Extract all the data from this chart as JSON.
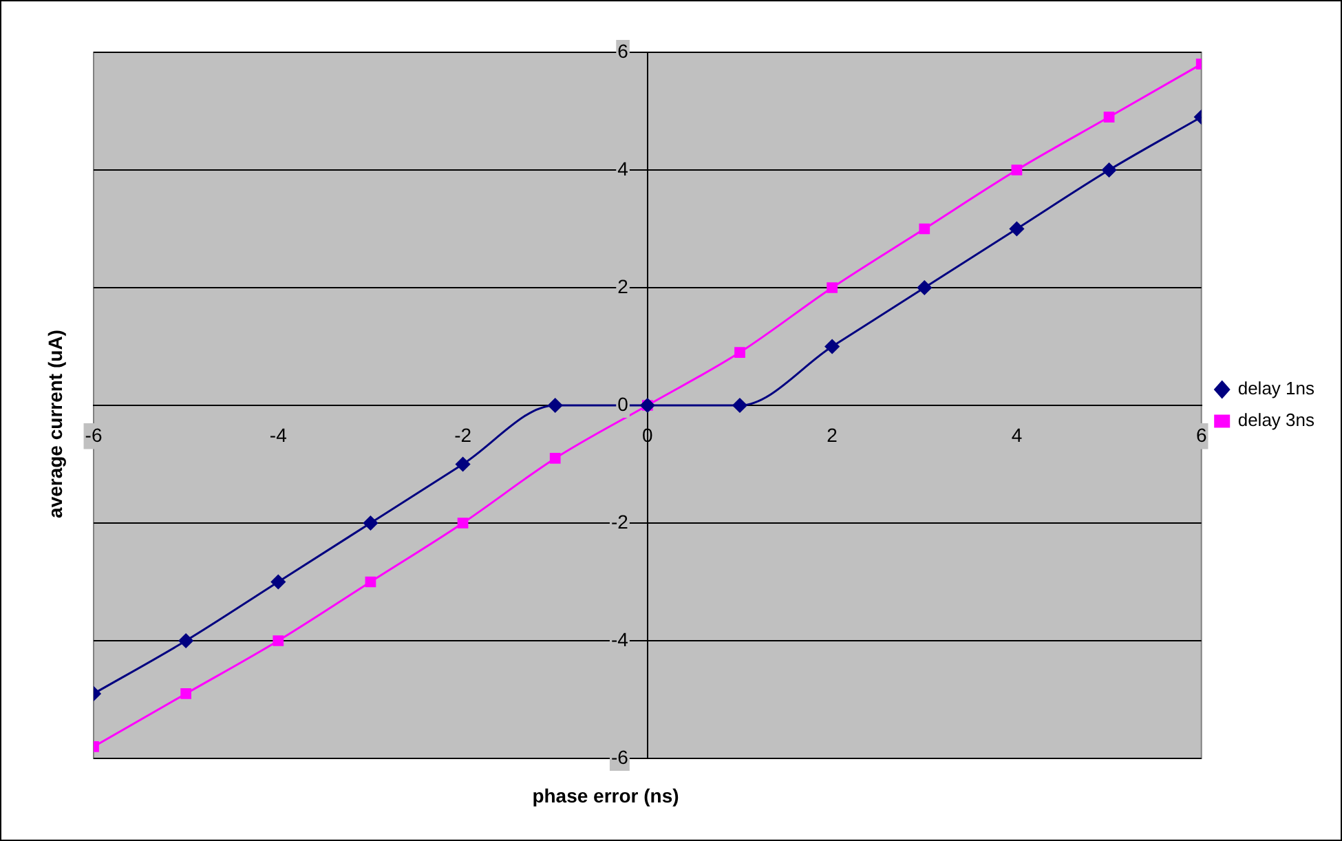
{
  "chart_data": {
    "type": "line",
    "xlabel": "phase error (ns)",
    "ylabel": "average current (uA)",
    "x": [
      -6,
      -5,
      -4,
      -3,
      -2,
      -1,
      0,
      1,
      2,
      3,
      4,
      5,
      6
    ],
    "series": [
      {
        "name": "delay 1ns",
        "color": "#000080",
        "marker": "diamond",
        "values": [
          -4.9,
          -4,
          -3,
          -2,
          -1,
          0,
          0,
          0,
          1,
          2,
          3,
          4,
          4.9
        ]
      },
      {
        "name": "delay 3ns",
        "color": "#ff00ff",
        "marker": "square",
        "values": [
          -5.8,
          -4.9,
          -4,
          -3,
          -2,
          -0.9,
          0,
          0.9,
          2,
          3,
          4,
          4.9,
          5.8
        ]
      }
    ],
    "xlim": [
      -6,
      6
    ],
    "xticks": [
      -6,
      -4,
      -2,
      0,
      2,
      4,
      6
    ],
    "ylim": [
      -6,
      6
    ],
    "yticks": [
      -6,
      -4,
      -2,
      0,
      2,
      4,
      6
    ],
    "grid": "y",
    "legend": "right"
  }
}
